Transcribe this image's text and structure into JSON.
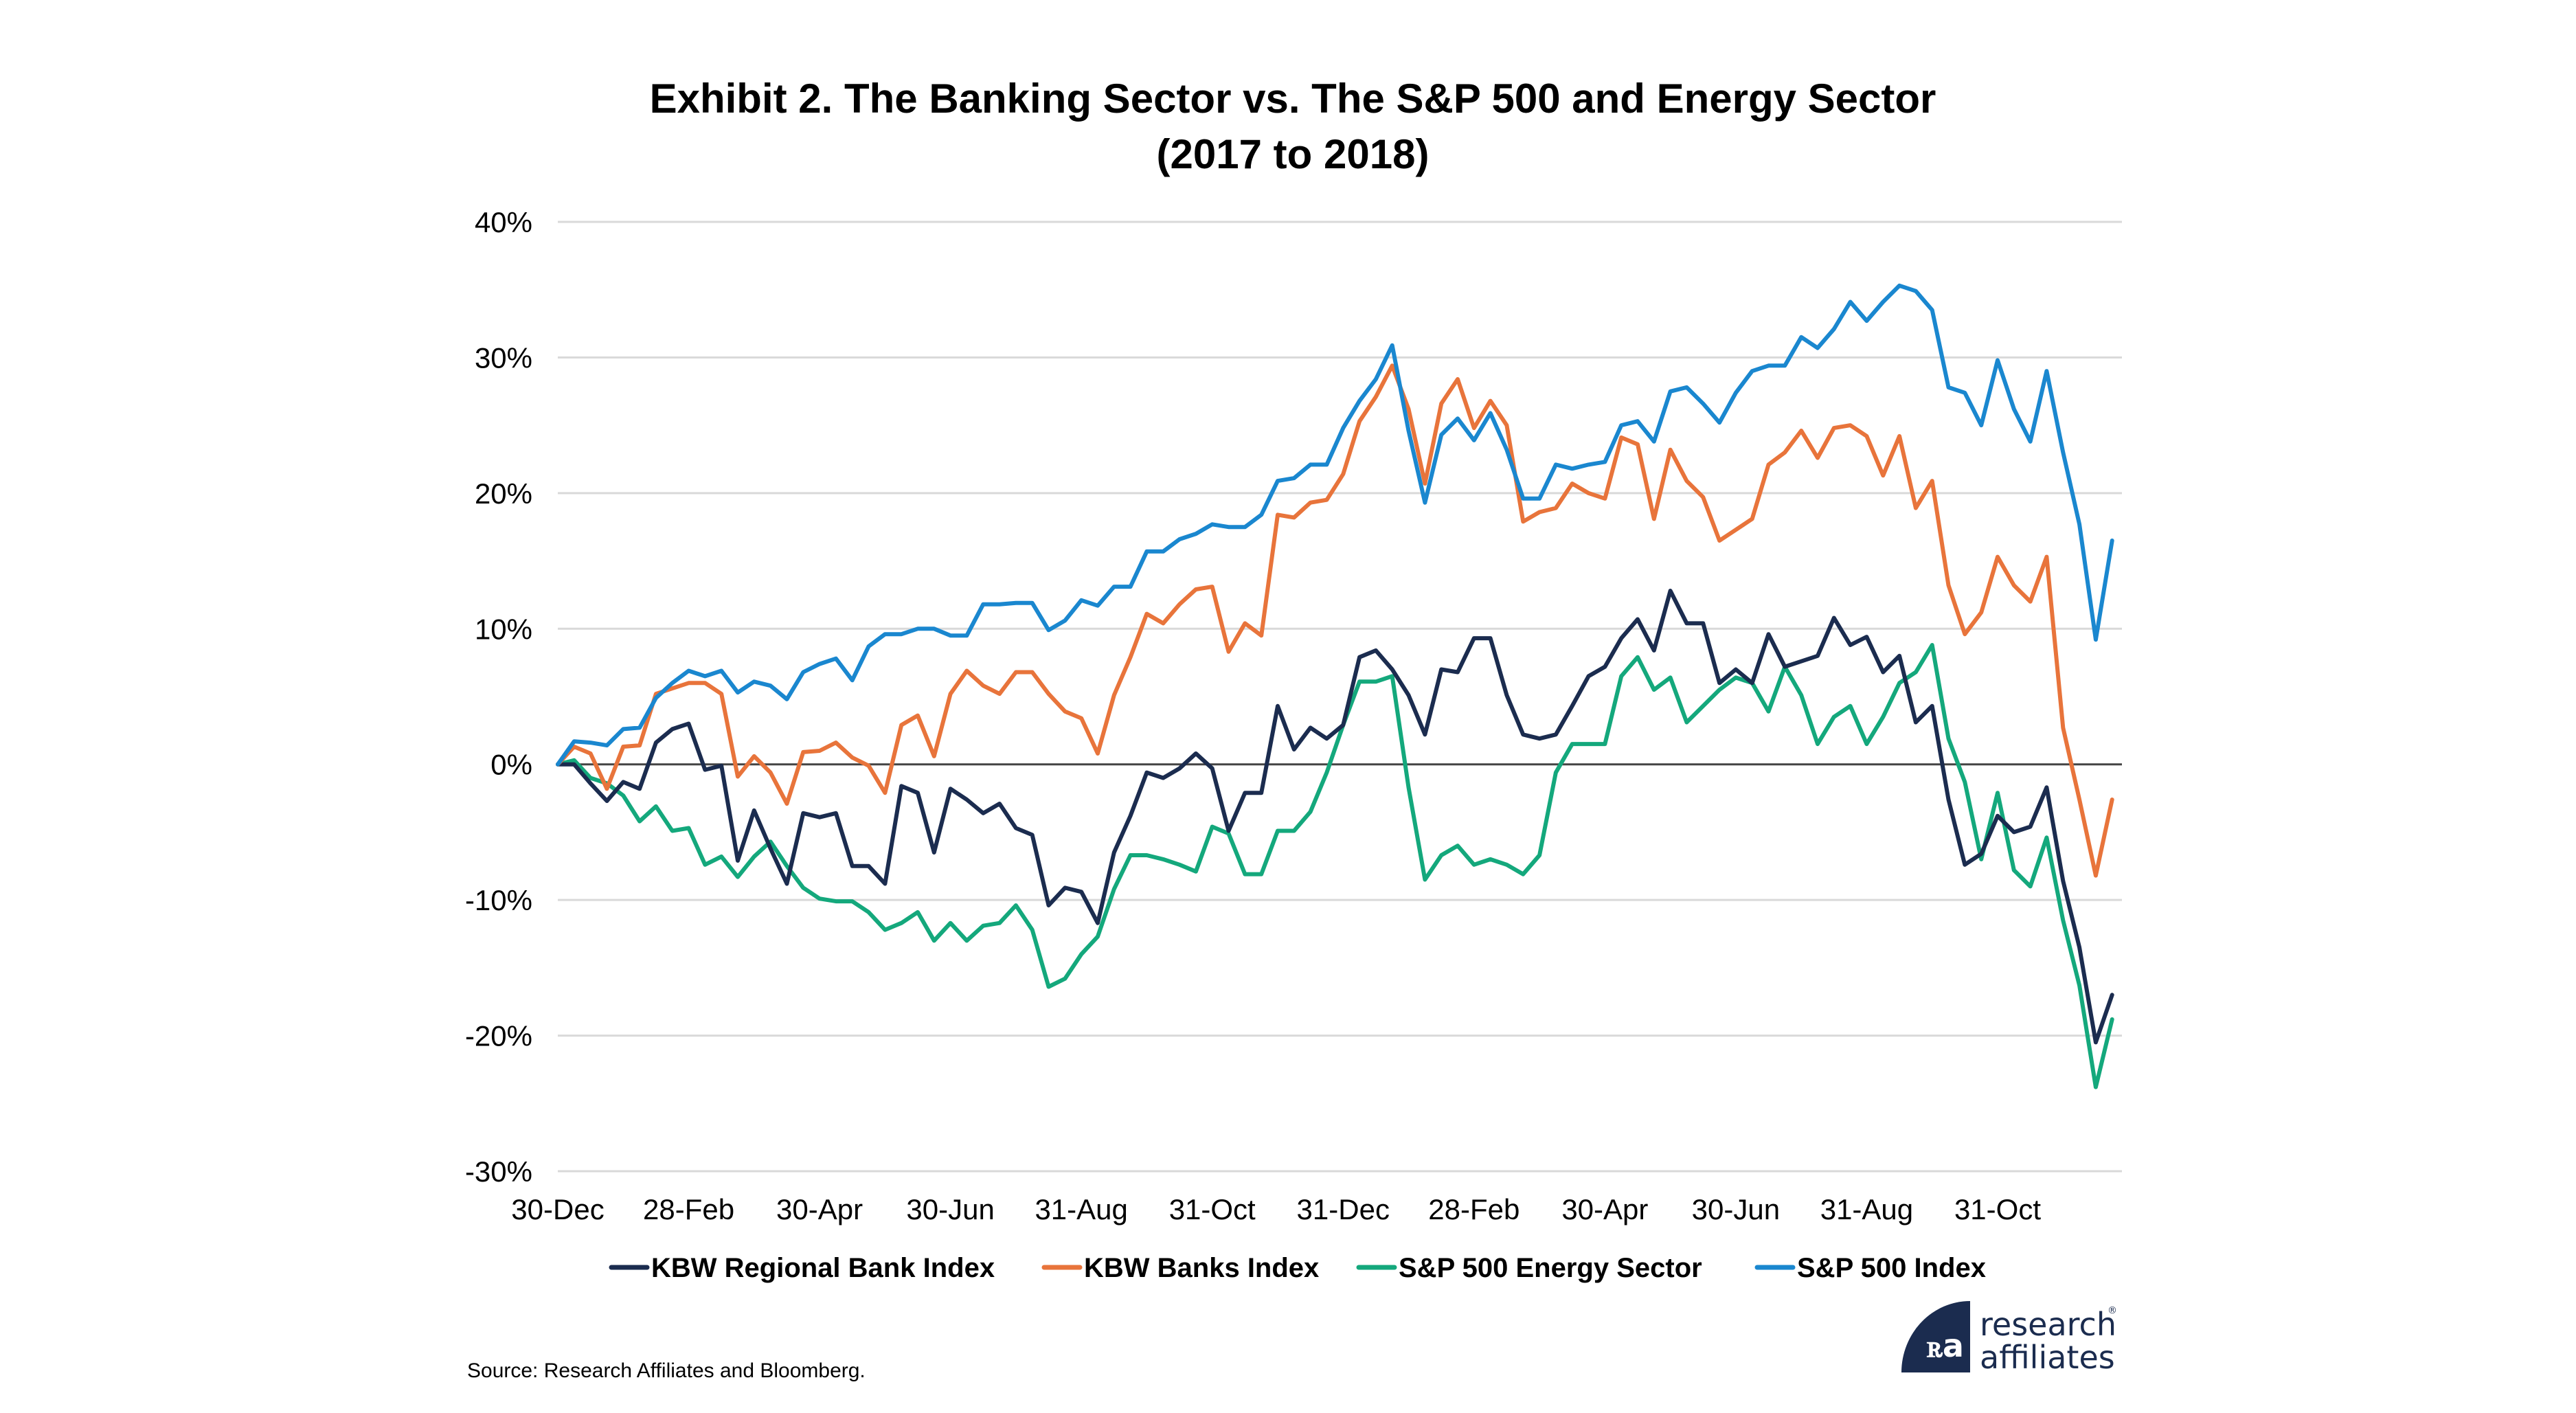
{
  "chart_data": {
    "type": "line",
    "title": "Exhibit 2. The Banking Sector vs. The S&P 500 and Energy Sector",
    "subtitle": "(2017 to 2018)",
    "xlabel": "",
    "ylabel": "",
    "x_unit": "months since 30-Dec-2016",
    "x_range": [
      0,
      23.9
    ],
    "ylim": [
      -30,
      40
    ],
    "y_ticks": [
      40,
      30,
      20,
      10,
      0,
      -10,
      -20,
      -30
    ],
    "y_tick_labels": [
      "40%",
      "30%",
      "20%",
      "10%",
      "0%",
      "-10%",
      "-20%",
      "-30%"
    ],
    "x_ticks": [
      0,
      2,
      4,
      6,
      8,
      10,
      12,
      14,
      16,
      18,
      20,
      22
    ],
    "x_tick_labels": [
      "30-Dec",
      "28-Feb",
      "30-Apr",
      "30-Jun",
      "31-Aug",
      "31-Oct",
      "31-Dec",
      "28-Feb",
      "30-Apr",
      "30-Jun",
      "31-Aug",
      "31-Oct"
    ],
    "grid": true,
    "legend_position": "bottom",
    "x_step_months": 0.25,
    "series": [
      {
        "name": "KBW Regional Bank Index",
        "color": "#1b2c4f",
        "values": [
          0,
          0,
          -1.4,
          -2.7,
          -1.3,
          -1.8,
          1.6,
          2.6,
          3.0,
          -0.4,
          -0.1,
          -7.1,
          -3.4,
          -6.2,
          -8.8,
          -3.6,
          -3.9,
          -3.6,
          -7.5,
          -7.5,
          -8.8,
          -1.6,
          -2.1,
          -6.5,
          -1.8,
          -2.6,
          -3.6,
          -2.9,
          -4.7,
          -5.2,
          -10.4,
          -9.1,
          -9.4,
          -11.7,
          -6.5,
          -3.8,
          -0.6,
          -1.0,
          -0.3,
          0.8,
          -0.3,
          -4.9,
          -2.1,
          -2.1,
          4.3,
          1.1,
          2.7,
          1.9,
          2.9,
          7.9,
          8.4,
          7.0,
          5.1,
          2.2,
          7.0,
          6.8,
          9.3,
          9.3,
          5.1,
          2.2,
          1.9,
          2.2,
          4.3,
          6.5,
          7.2,
          9.3,
          10.7,
          8.4,
          12.8,
          10.4,
          10.4,
          6.0,
          7.0,
          6.0,
          9.6,
          7.2,
          7.6,
          8.0,
          10.8,
          8.8,
          9.4,
          6.8,
          8.0,
          3.1,
          4.3,
          -2.6,
          -7.4,
          -6.6,
          -3.8,
          -5.0,
          -4.6,
          -1.7,
          -8.6,
          -13.5,
          -20.5,
          -17.0
        ]
      },
      {
        "name": "KBW Banks Index",
        "color": "#e8743b",
        "values": [
          0,
          1.3,
          0.8,
          -1.8,
          1.3,
          1.4,
          5.2,
          5.6,
          6.0,
          6.0,
          5.2,
          -0.9,
          0.6,
          -0.6,
          -2.9,
          0.9,
          1.0,
          1.6,
          0.5,
          -0.1,
          -2.1,
          2.9,
          3.6,
          0.6,
          5.2,
          6.9,
          5.8,
          5.2,
          6.8,
          6.8,
          5.2,
          3.9,
          3.4,
          0.8,
          5.1,
          7.9,
          11.1,
          10.4,
          11.8,
          12.9,
          13.1,
          8.3,
          10.4,
          9.5,
          18.4,
          18.2,
          19.3,
          19.5,
          21.4,
          25.3,
          27.1,
          29.4,
          26.2,
          20.7,
          26.6,
          28.4,
          24.8,
          26.8,
          25.0,
          17.9,
          18.6,
          18.9,
          20.7,
          20.0,
          19.6,
          24.1,
          23.6,
          18.1,
          23.2,
          20.9,
          19.7,
          16.5,
          17.3,
          18.1,
          22.1,
          23.0,
          24.6,
          22.6,
          24.8,
          25.0,
          24.2,
          21.3,
          24.2,
          18.9,
          20.9,
          13.2,
          9.6,
          11.2,
          15.3,
          13.2,
          12.0,
          15.3,
          2.7,
          -2.6,
          -8.2,
          -2.6
        ]
      },
      {
        "name": "S&P 500 Energy Sector",
        "color": "#14a87c",
        "values": [
          0,
          0.3,
          -1.0,
          -1.4,
          -2.3,
          -4.2,
          -3.1,
          -4.9,
          -4.7,
          -7.4,
          -6.8,
          -8.3,
          -6.8,
          -5.7,
          -7.5,
          -9.1,
          -9.9,
          -10.1,
          -10.1,
          -10.9,
          -12.2,
          -11.7,
          -10.9,
          -13.0,
          -11.7,
          -13.0,
          -11.9,
          -11.7,
          -10.4,
          -12.2,
          -16.4,
          -15.8,
          -14.0,
          -12.7,
          -9.2,
          -6.7,
          -6.7,
          -7.0,
          -7.4,
          -7.9,
          -4.6,
          -5.1,
          -8.1,
          -8.1,
          -4.9,
          -4.9,
          -3.5,
          -0.6,
          2.9,
          6.1,
          6.1,
          6.5,
          -1.7,
          -8.5,
          -6.7,
          -6.0,
          -7.4,
          -7.0,
          -7.4,
          -8.1,
          -6.7,
          -0.6,
          1.5,
          1.5,
          1.5,
          6.5,
          7.9,
          5.5,
          6.4,
          3.1,
          4.3,
          5.5,
          6.4,
          6.0,
          3.9,
          7.2,
          5.1,
          1.5,
          3.5,
          4.3,
          1.5,
          3.5,
          6.0,
          6.8,
          8.8,
          1.9,
          -1.3,
          -7.0,
          -2.1,
          -7.8,
          -9.0,
          -5.4,
          -11.5,
          -16.3,
          -23.8,
          -18.8
        ]
      },
      {
        "name": "S&P 500 Index",
        "color": "#1a87cf",
        "values": [
          0,
          1.7,
          1.6,
          1.4,
          2.6,
          2.7,
          4.9,
          6.0,
          6.9,
          6.5,
          6.9,
          5.3,
          6.1,
          5.8,
          4.8,
          6.8,
          7.4,
          7.8,
          6.2,
          8.7,
          9.6,
          9.6,
          10.0,
          10.0,
          9.5,
          9.5,
          11.8,
          11.8,
          11.9,
          11.9,
          9.9,
          10.6,
          12.1,
          11.7,
          13.1,
          13.1,
          15.7,
          15.7,
          16.6,
          17.0,
          17.7,
          17.5,
          17.5,
          18.4,
          20.9,
          21.1,
          22.1,
          22.1,
          24.8,
          26.8,
          28.4,
          30.9,
          24.6,
          19.3,
          24.3,
          25.5,
          23.9,
          25.9,
          23.2,
          19.6,
          19.6,
          22.1,
          21.8,
          22.1,
          22.3,
          25.0,
          25.3,
          23.8,
          27.5,
          27.8,
          26.6,
          25.2,
          27.4,
          29.0,
          29.4,
          29.4,
          31.5,
          30.7,
          32.1,
          34.1,
          32.7,
          34.1,
          35.3,
          34.9,
          33.5,
          27.8,
          27.4,
          25.0,
          29.8,
          26.2,
          23.8,
          29.0,
          23.0,
          17.7,
          9.2,
          16.5
        ]
      }
    ]
  },
  "footer": {
    "source": "Source: Research Affiliates and Bloomberg.",
    "logo_line1": "research",
    "logo_line2": "affiliates",
    "logo_mark": "ꭱa",
    "logo_registered": "®"
  }
}
